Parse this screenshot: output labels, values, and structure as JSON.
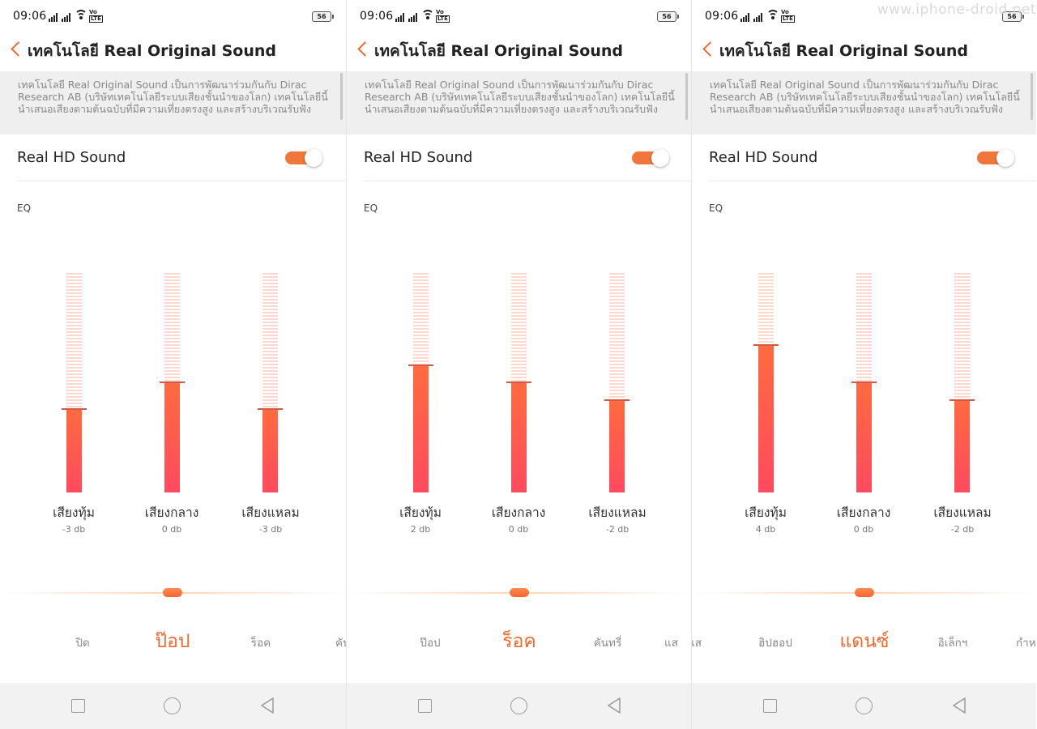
{
  "watermark": "www.iphone-droid.net",
  "colors": {
    "accent": "#f06a30",
    "bar_top": "#ff6b3f",
    "bar_bottom": "#ff4a5f",
    "track_stripe": "#fbd8d0"
  },
  "panels": [
    {
      "status": {
        "time": "09:06",
        "battery": "56"
      },
      "header": {
        "title": "เทคโนโลยี Real Original Sound",
        "back_icon": "chevron-left-icon"
      },
      "description": "เทคโนโลยี Real Original Sound เป็นการพัฒนาร่วมกันกับ Dirac Research AB (บริษัทเทคโนโลยีระบบเสียงชั้นนำของโลก) เทคโนโลยีนี้นำเสนอเสียงตามต้นฉบับที่มีความเที่ยงตรงสูง และสร้างบริเวณรับฟัง",
      "hd_sound": {
        "label": "Real HD Sound",
        "enabled": true
      },
      "eq_label": "EQ",
      "bands": [
        {
          "name": "เสียงทุ้ม",
          "db": "-3 db",
          "level": 0.38
        },
        {
          "name": "เสียงกลาง",
          "db": "0 db",
          "level": 0.5
        },
        {
          "name": "เสียงแหลม",
          "db": "-3 db",
          "level": 0.38
        }
      ],
      "presets": [
        "ปิด",
        "ป๊อป",
        "ร็อค",
        "คันทรี่"
      ],
      "selected_preset": "ป๊อป"
    },
    {
      "status": {
        "time": "09:06",
        "battery": "56"
      },
      "header": {
        "title": "เทคโนโลยี Real Original Sound",
        "back_icon": "chevron-left-icon"
      },
      "description": "เทคโนโลยี Real Original Sound เป็นการพัฒนาร่วมกันกับ Dirac Research AB (บริษัทเทคโนโลยีระบบเสียงชั้นนำของโลก) เทคโนโลยีนี้นำเสนอเสียงตามต้นฉบับที่มีความเที่ยงตรงสูง และสร้างบริเวณรับฟัง",
      "hd_sound": {
        "label": "Real HD Sound",
        "enabled": true
      },
      "eq_label": "EQ",
      "bands": [
        {
          "name": "เสียงทุ้ม",
          "db": "2 db",
          "level": 0.58
        },
        {
          "name": "เสียงกลาง",
          "db": "0 db",
          "level": 0.5
        },
        {
          "name": "เสียงแหลม",
          "db": "-2 db",
          "level": 0.42
        }
      ],
      "presets": [
        "ป๊อป",
        "ร็อค",
        "คันทรี่",
        "แส"
      ],
      "selected_preset": "ร็อค"
    },
    {
      "status": {
        "time": "09:06",
        "battery": "56"
      },
      "header": {
        "title": "เทคโนโลยี Real Original Sound",
        "back_icon": "chevron-left-icon"
      },
      "description": "เทคโนโลยี Real Original Sound เป็นการพัฒนาร่วมกันกับ Dirac Research AB (บริษัทเทคโนโลยีระบบเสียงชั้นนำของโลก) เทคโนโลยีนี้นำเสนอเสียงตามต้นฉบับที่มีความเที่ยงตรงสูง และสร้างบริเวณรับฟัง",
      "hd_sound": {
        "label": "Real HD Sound",
        "enabled": true
      },
      "eq_label": "EQ",
      "bands": [
        {
          "name": "เสียงทุ้ม",
          "db": "4 db",
          "level": 0.67
        },
        {
          "name": "เสียงกลาง",
          "db": "0 db",
          "level": 0.5
        },
        {
          "name": "เสียงแหลม",
          "db": "-2 db",
          "level": 0.42
        }
      ],
      "presets": [
        "แส",
        "ฮิปฮอป",
        "แดนซ์",
        "อิเล็กฯ",
        "กำห"
      ],
      "selected_preset": "แดนซ์"
    }
  ],
  "nav_icons": [
    "square-icon",
    "circle-icon",
    "back-triangle-icon"
  ]
}
